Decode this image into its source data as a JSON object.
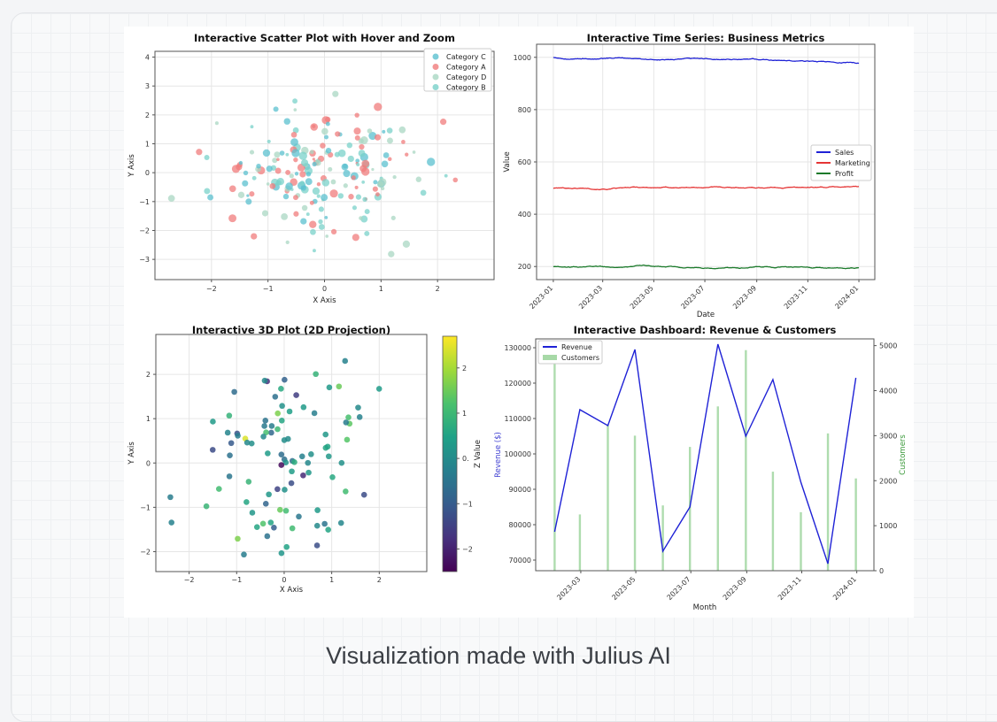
{
  "caption": "Visualization made with Julius AI",
  "chart_data": [
    {
      "type": "scatter",
      "title": "Interactive Scatter Plot with Hover and Zoom",
      "xlabel": "X Axis",
      "ylabel": "Y Axis",
      "xlim": [
        -3,
        3
      ],
      "ylim": [
        -3.7,
        4.2
      ],
      "xticks": [
        -2,
        -1,
        0,
        1,
        2
      ],
      "yticks": [
        -3,
        -2,
        -1,
        0,
        1,
        2,
        3,
        4
      ],
      "grid": true,
      "legend": "top-right",
      "series": [
        {
          "name": "Category C",
          "color": "#5bc0cf"
        },
        {
          "name": "Category A",
          "color": "#f07c7c"
        },
        {
          "name": "Category D",
          "color": "#a9d7c3"
        },
        {
          "name": "Category B",
          "color": "#79d1c9"
        }
      ]
    },
    {
      "type": "line",
      "title": "Interactive Time Series: Business Metrics",
      "xlabel": "Date",
      "ylabel": "Value",
      "ylim": [
        150,
        1050
      ],
      "yticks": [
        200,
        400,
        600,
        800,
        1000
      ],
      "xticks": [
        "2023-01",
        "2023-03",
        "2023-05",
        "2023-07",
        "2023-09",
        "2023-11",
        "2024-01"
      ],
      "grid": true,
      "legend": "center-right",
      "series": [
        {
          "name": "Sales",
          "color": "#1f22d6",
          "start": 1000,
          "end": 980
        },
        {
          "name": "Marketing",
          "color": "#e53535",
          "start": 500,
          "end": 505
        },
        {
          "name": "Profit",
          "color": "#1a7a2a",
          "start": 200,
          "end": 200
        }
      ]
    },
    {
      "type": "scatter",
      "title": "Interactive 3D Plot (2D Projection)",
      "xlabel": "X Axis",
      "ylabel": "Y Axis",
      "colorbar_label": "Z Value",
      "colorbar_ticks": [
        "2",
        "1",
        "0.",
        "−1",
        "−2"
      ],
      "colorbar_range": [
        -2.5,
        2.7
      ],
      "xlim": [
        -2.7,
        3.0
      ],
      "ylim": [
        -2.45,
        2.9
      ],
      "xticks": [
        -2,
        -1,
        0,
        1,
        2
      ],
      "yticks": [
        -2,
        -1,
        0,
        1,
        2
      ],
      "grid": true
    },
    {
      "type": "line",
      "title": "Interactive Dashboard: Revenue & Customers",
      "xlabel": "Month",
      "ylabel": "Revenue ($)",
      "ylabel_right": "Customers",
      "ylim": [
        67000,
        132500
      ],
      "ylim_right": [
        0,
        5150
      ],
      "yticks": [
        70000,
        80000,
        90000,
        100000,
        110000,
        120000,
        130000
      ],
      "yticks_right": [
        0,
        1000,
        2000,
        3000,
        4000,
        5000
      ],
      "xticks": [
        "2023-03",
        "2023-05",
        "2023-07",
        "2023-09",
        "2023-11",
        "2024-01"
      ],
      "legend": "top-left",
      "series": [
        {
          "name": "Revenue",
          "color": "#1f22d6",
          "x": [
            "2023-01-31",
            "2023-02-28",
            "2023-03-31",
            "2023-04-30",
            "2023-05-31",
            "2023-06-30",
            "2023-07-31",
            "2023-08-31",
            "2023-09-30",
            "2023-10-31",
            "2023-11-30",
            "2023-12-31"
          ],
          "values": [
            78000,
            112500,
            108000,
            129500,
            72500,
            85000,
            131000,
            105000,
            121000,
            92000,
            69000,
            121500
          ]
        },
        {
          "name": "Customers",
          "color": "#6cbf6c",
          "x": [
            "2023-01-31",
            "2023-02-28",
            "2023-03-31",
            "2023-04-30",
            "2023-05-31",
            "2023-06-30",
            "2023-07-31",
            "2023-08-31",
            "2023-09-30",
            "2023-10-31",
            "2023-11-30",
            "2023-12-31"
          ],
          "values": [
            4900,
            1250,
            3250,
            3000,
            1450,
            2750,
            3650,
            4900,
            2200,
            1300,
            3050,
            2050
          ]
        }
      ]
    }
  ]
}
